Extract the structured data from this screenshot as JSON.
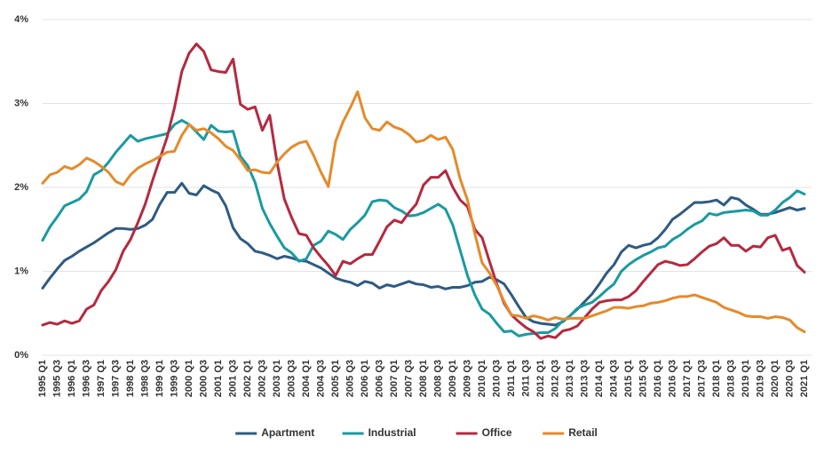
{
  "chart_data": {
    "type": "line",
    "categories": [
      "1995 Q1",
      null,
      "1995 Q3",
      null,
      "1996 Q1",
      null,
      "1996 Q3",
      null,
      "1997 Q1",
      null,
      "1997 Q3",
      null,
      "1998 Q1",
      null,
      "1998 Q3",
      null,
      "1999 Q1",
      null,
      "1999 Q3",
      null,
      "2000 Q1",
      null,
      "2000 Q3",
      null,
      "2001 Q1",
      null,
      "2001 Q3",
      null,
      "2002 Q1",
      null,
      "2002 Q3",
      null,
      "2003 Q1",
      null,
      "2003 Q3",
      null,
      "2004 Q1",
      null,
      "2004 Q3",
      null,
      "2005 Q1",
      null,
      "2005 Q3",
      null,
      "2006 Q1",
      null,
      "2006 Q3",
      null,
      "2007 Q1",
      null,
      "2007 Q3",
      null,
      "2008 Q1",
      null,
      "2008 Q3",
      null,
      "2009 Q1",
      null,
      "2009 Q3",
      null,
      "2010 Q1",
      null,
      "2010 Q3",
      null,
      "2011 Q1",
      null,
      "2011 Q3",
      null,
      "2012 Q1",
      null,
      "2012 Q3",
      null,
      "2013 Q1",
      null,
      "2013 Q3",
      null,
      "2014 Q1",
      null,
      "2014 Q3",
      null,
      "2015 Q1",
      null,
      "2015 Q3",
      null,
      "2016 Q1",
      null,
      "2016 Q3",
      null,
      "2017 Q1",
      null,
      "2017 Q3",
      null,
      "2018 Q1",
      null,
      "2018 Q3",
      null,
      "2019 Q1",
      null,
      "2019 Q3",
      null,
      "2020 Q1",
      null,
      "2020 Q3",
      null,
      "2021 Q1"
    ],
    "series": [
      {
        "name": "Apartment",
        "color": "#2e5b82",
        "values": [
          0.8,
          0.92,
          1.03,
          1.13,
          1.18,
          1.24,
          1.29,
          1.34,
          1.4,
          1.46,
          1.51,
          1.51,
          1.5,
          1.51,
          1.55,
          1.62,
          1.8,
          1.94,
          1.94,
          2.05,
          1.93,
          1.91,
          2.02,
          1.97,
          1.93,
          1.78,
          1.52,
          1.39,
          1.33,
          1.24,
          1.22,
          1.19,
          1.15,
          1.18,
          1.16,
          1.13,
          1.12,
          1.08,
          1.04,
          0.98,
          0.92,
          0.89,
          0.87,
          0.83,
          0.88,
          0.86,
          0.8,
          0.84,
          0.82,
          0.85,
          0.88,
          0.85,
          0.84,
          0.81,
          0.82,
          0.79,
          0.81,
          0.81,
          0.83,
          0.87,
          0.88,
          0.93,
          0.9,
          0.85,
          0.72,
          0.58,
          0.45,
          0.4,
          0.38,
          0.37,
          0.36,
          0.4,
          0.47,
          0.55,
          0.64,
          0.73,
          0.85,
          0.98,
          1.08,
          1.23,
          1.31,
          1.28,
          1.31,
          1.33,
          1.4,
          1.5,
          1.62,
          1.68,
          1.75,
          1.82,
          1.82,
          1.83,
          1.85,
          1.79,
          1.88,
          1.86,
          1.79,
          1.74,
          1.68,
          1.68,
          1.7,
          1.73,
          1.76,
          1.73,
          1.75
        ]
      },
      {
        "name": "Industrial",
        "color": "#1a9aa0",
        "values": [
          1.37,
          1.53,
          1.65,
          1.78,
          1.82,
          1.86,
          1.95,
          2.15,
          2.2,
          2.3,
          2.42,
          2.52,
          2.62,
          2.55,
          2.58,
          2.6,
          2.62,
          2.64,
          2.75,
          2.8,
          2.75,
          2.66,
          2.57,
          2.74,
          2.67,
          2.66,
          2.67,
          2.37,
          2.26,
          2.06,
          1.75,
          1.57,
          1.42,
          1.28,
          1.22,
          1.12,
          1.15,
          1.31,
          1.36,
          1.48,
          1.44,
          1.38,
          1.5,
          1.58,
          1.67,
          1.83,
          1.85,
          1.84,
          1.76,
          1.72,
          1.66,
          1.67,
          1.7,
          1.75,
          1.8,
          1.74,
          1.55,
          1.25,
          0.95,
          0.72,
          0.55,
          0.49,
          0.38,
          0.28,
          0.29,
          0.23,
          0.25,
          0.26,
          0.27,
          0.27,
          0.32,
          0.41,
          0.47,
          0.56,
          0.6,
          0.63,
          0.7,
          0.78,
          0.85,
          1.0,
          1.08,
          1.14,
          1.19,
          1.23,
          1.28,
          1.3,
          1.38,
          1.43,
          1.5,
          1.56,
          1.6,
          1.69,
          1.67,
          1.7,
          1.71,
          1.72,
          1.73,
          1.72,
          1.67,
          1.67,
          1.73,
          1.82,
          1.88,
          1.96,
          1.92
        ]
      },
      {
        "name": "Office",
        "color": "#b5293f",
        "values": [
          0.36,
          0.39,
          0.37,
          0.41,
          0.38,
          0.41,
          0.55,
          0.6,
          0.77,
          0.88,
          1.02,
          1.24,
          1.38,
          1.58,
          1.8,
          2.08,
          2.34,
          2.6,
          2.95,
          3.38,
          3.6,
          3.71,
          3.62,
          3.4,
          3.38,
          3.37,
          3.53,
          2.99,
          2.93,
          2.96,
          2.68,
          2.86,
          2.3,
          1.86,
          1.64,
          1.45,
          1.43,
          1.28,
          1.17,
          1.07,
          0.95,
          1.12,
          1.09,
          1.15,
          1.2,
          1.2,
          1.36,
          1.53,
          1.61,
          1.58,
          1.7,
          1.8,
          2.03,
          2.12,
          2.12,
          2.2,
          2.0,
          1.85,
          1.77,
          1.5,
          1.4,
          1.12,
          0.85,
          0.62,
          0.48,
          0.4,
          0.33,
          0.28,
          0.2,
          0.23,
          0.21,
          0.29,
          0.31,
          0.35,
          0.45,
          0.55,
          0.63,
          0.65,
          0.66,
          0.66,
          0.7,
          0.77,
          0.88,
          0.98,
          1.08,
          1.12,
          1.1,
          1.07,
          1.08,
          1.15,
          1.23,
          1.3,
          1.33,
          1.4,
          1.31,
          1.31,
          1.24,
          1.3,
          1.29,
          1.4,
          1.43,
          1.25,
          1.28,
          1.07,
          0.99
        ]
      },
      {
        "name": "Retail",
        "color": "#e58a2b",
        "values": [
          2.05,
          2.15,
          2.18,
          2.25,
          2.22,
          2.27,
          2.35,
          2.31,
          2.25,
          2.18,
          2.07,
          2.03,
          2.15,
          2.23,
          2.28,
          2.32,
          2.37,
          2.42,
          2.43,
          2.62,
          2.75,
          2.68,
          2.7,
          2.65,
          2.58,
          2.49,
          2.44,
          2.33,
          2.2,
          2.21,
          2.18,
          2.17,
          2.3,
          2.4,
          2.48,
          2.53,
          2.55,
          2.38,
          2.18,
          2.01,
          2.55,
          2.78,
          2.95,
          3.14,
          2.83,
          2.7,
          2.68,
          2.78,
          2.72,
          2.69,
          2.63,
          2.54,
          2.56,
          2.62,
          2.57,
          2.6,
          2.45,
          2.1,
          1.85,
          1.45,
          1.1,
          0.98,
          0.83,
          0.64,
          0.48,
          0.47,
          0.44,
          0.47,
          0.45,
          0.42,
          0.45,
          0.43,
          0.44,
          0.44,
          0.44,
          0.47,
          0.5,
          0.53,
          0.57,
          0.57,
          0.56,
          0.58,
          0.59,
          0.62,
          0.63,
          0.65,
          0.68,
          0.7,
          0.7,
          0.72,
          0.69,
          0.66,
          0.63,
          0.57,
          0.54,
          0.51,
          0.47,
          0.46,
          0.46,
          0.44,
          0.46,
          0.45,
          0.42,
          0.33,
          0.28
        ]
      }
    ],
    "ylim": [
      0,
      4
    ],
    "yticks": [
      {
        "value": 0,
        "label": "0%"
      },
      {
        "value": 1,
        "label": "1%"
      },
      {
        "value": 2,
        "label": "2%"
      },
      {
        "value": 3,
        "label": "3%"
      },
      {
        "value": 4,
        "label": "4%"
      }
    ],
    "grid": true,
    "legend": "bottom"
  }
}
